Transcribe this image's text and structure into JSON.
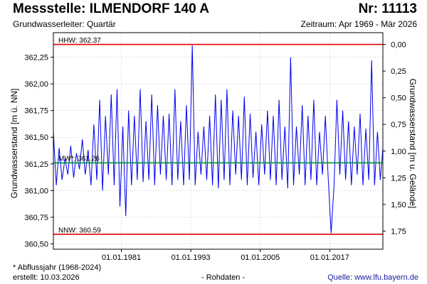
{
  "header": {
    "title": "Messstelle: ILMENDORF 140 A",
    "number": "Nr: 11113",
    "subtitle": "Grundwasserleiter: Quartär",
    "period": "Zeitraum: Apr 1969 - Mär 2026"
  },
  "footer": {
    "footnote": "* Abflussjahr (1968-2024)",
    "created": "erstellt:  10.03.2026",
    "rawdata": "- Rohdaten -",
    "source": "Quelle:  www.lfu.bayern.de"
  },
  "colors": {
    "series": "#0000ee",
    "reference": "#e00000",
    "mean": "#009a3e",
    "grid": "#c8c8c8"
  },
  "chart_data": {
    "type": "line",
    "ylabel_left": "Grundwasserstand [m ü. NN]",
    "ylabel_right": "Grundwasserstand [m u. Gelände]",
    "ylim": [
      360.45,
      362.48
    ],
    "xlim": [
      "1969-04-01",
      "2026-03-10"
    ],
    "yticks_left": [
      "362,25",
      "362,00",
      "361,75",
      "361,50",
      "361,25",
      "361,00",
      "360,75",
      "360,50"
    ],
    "yticks_left_values": [
      362.25,
      362.0,
      361.75,
      361.5,
      361.25,
      361.0,
      360.75,
      360.5
    ],
    "yticks_right": [
      "0,00",
      "0,25",
      "0,50",
      "0,75",
      "1,00",
      "1,25",
      "1,50",
      "1,75"
    ],
    "yticks_right_values": [
      0.0,
      0.25,
      0.5,
      0.75,
      1.0,
      1.25,
      1.5,
      1.75
    ],
    "ground_level": 362.37,
    "xticks": [
      "01.01.1981",
      "01.01.1993",
      "01.01.2005",
      "01.01.2017"
    ],
    "xticks_values": [
      "1981-01-01",
      "1993-01-01",
      "2005-01-01",
      "2017-01-01"
    ],
    "grid": true,
    "reference_lines": [
      {
        "label": "HHW: 362.37",
        "value": 362.37
      },
      {
        "label": "NNW: 360.59",
        "value": 360.59
      }
    ],
    "mean_line": {
      "label": "MW*: 361.26",
      "value": 361.26
    },
    "series": [
      {
        "x": [
          "1969-04-01",
          "1969-10-01",
          "1970-04-01",
          "1970-10-01",
          "1971-04-01",
          "1971-10-01",
          "1972-04-01",
          "1972-10-01",
          "1973-04-01",
          "1973-10-01",
          "1974-04-01",
          "1974-10-01",
          "1975-04-01",
          "1975-10-01",
          "1976-04-01",
          "1976-10-01",
          "1977-04-01",
          "1977-10-01",
          "1978-04-01",
          "1978-10-01",
          "1979-04-01",
          "1979-10-01",
          "1980-04-01",
          "1980-10-01",
          "1981-04-01",
          "1981-10-01",
          "1982-04-01",
          "1982-10-01",
          "1983-04-01",
          "1983-10-01",
          "1984-04-01",
          "1984-10-01",
          "1985-04-01",
          "1985-10-01",
          "1986-04-01",
          "1986-10-01",
          "1987-04-01",
          "1987-10-01",
          "1988-04-01",
          "1988-10-01",
          "1989-04-01",
          "1989-10-01",
          "1990-04-01",
          "1990-10-01",
          "1991-04-01",
          "1991-10-01",
          "1992-04-01",
          "1992-10-01",
          "1993-04-01",
          "1993-10-01",
          "1994-04-01",
          "1994-10-01",
          "1995-04-01",
          "1995-10-01",
          "1996-04-01",
          "1996-10-01",
          "1997-04-01",
          "1997-10-01",
          "1998-04-01",
          "1998-10-01",
          "1999-04-01",
          "1999-10-01",
          "2000-04-01",
          "2000-10-01",
          "2001-04-01",
          "2001-10-01",
          "2002-04-01",
          "2002-10-01",
          "2003-04-01",
          "2003-10-01",
          "2004-04-01",
          "2004-10-01",
          "2005-04-01",
          "2005-10-01",
          "2006-04-01",
          "2006-10-01",
          "2007-04-01",
          "2007-10-01",
          "2008-04-01",
          "2008-10-01",
          "2009-04-01",
          "2009-10-01",
          "2010-04-01",
          "2010-10-01",
          "2011-04-01",
          "2011-10-01",
          "2012-04-01",
          "2012-10-01",
          "2013-04-01",
          "2013-10-01",
          "2014-04-01",
          "2014-10-01",
          "2015-04-01",
          "2015-10-01",
          "2016-04-01",
          "2016-10-01",
          "2017-04-01",
          "2017-10-01",
          "2018-04-01",
          "2018-10-01",
          "2019-04-01",
          "2019-10-01",
          "2020-04-01",
          "2020-10-01",
          "2021-04-01",
          "2021-10-01",
          "2022-04-01",
          "2022-10-01",
          "2023-04-01",
          "2023-10-01",
          "2024-04-01",
          "2024-10-01",
          "2025-04-01",
          "2025-10-01",
          "2026-03-10"
        ],
        "y": [
          361.55,
          361.05,
          361.4,
          361.1,
          361.3,
          361.15,
          361.42,
          361.12,
          361.35,
          361.2,
          361.48,
          361.15,
          361.38,
          361.05,
          361.62,
          361.1,
          361.85,
          361.0,
          361.7,
          361.15,
          361.9,
          361.05,
          361.95,
          360.85,
          361.6,
          360.76,
          361.75,
          361.05,
          361.7,
          361.1,
          361.95,
          361.08,
          361.65,
          361.1,
          361.9,
          361.05,
          361.8,
          361.15,
          361.7,
          361.1,
          361.72,
          361.05,
          361.95,
          361.1,
          361.65,
          361.05,
          361.8,
          361.1,
          362.36,
          361.05,
          361.55,
          361.15,
          361.6,
          361.1,
          361.7,
          361.05,
          361.9,
          361.02,
          361.85,
          361.1,
          361.95,
          361.05,
          361.75,
          361.15,
          361.7,
          361.1,
          361.88,
          361.05,
          361.72,
          361.12,
          361.55,
          361.05,
          361.62,
          361.15,
          361.75,
          361.1,
          361.7,
          361.05,
          361.85,
          361.1,
          361.6,
          361.02,
          362.25,
          361.05,
          361.6,
          361.15,
          361.8,
          361.05,
          361.7,
          361.1,
          361.85,
          361.05,
          361.55,
          361.15,
          361.7,
          361.1,
          360.6,
          361.05,
          361.85,
          361.15,
          361.75,
          361.1,
          361.65,
          361.05,
          361.6,
          361.15,
          361.72,
          361.05,
          361.58,
          361.1,
          362.22,
          361.05,
          361.55,
          361.1,
          361.4
        ]
      }
    ]
  }
}
